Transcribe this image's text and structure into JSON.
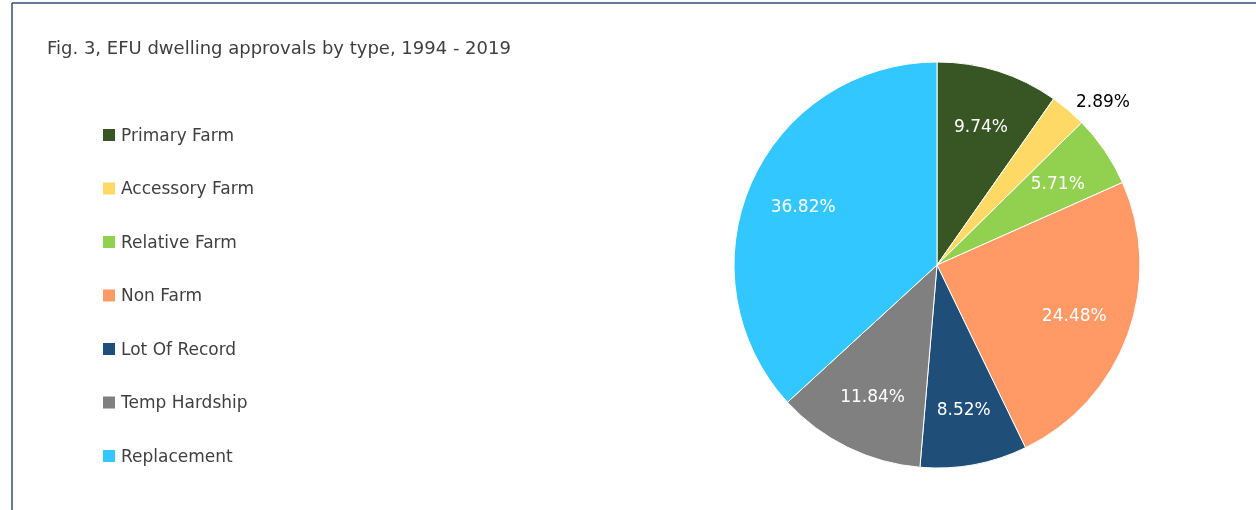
{
  "chart_data": {
    "type": "pie",
    "title": "Fig. 3, EFU dwelling approvals by type, 1994 - 2019",
    "categories": [
      "Primary Farm",
      "Accessory Farm",
      "Relative Farm",
      "Non Farm",
      "Lot Of Record",
      "Temp Hardship",
      "Replacement"
    ],
    "values": [
      9.74,
      2.89,
      5.71,
      24.48,
      8.52,
      11.84,
      36.82
    ],
    "colors": [
      "#375623",
      "#ffd966",
      "#92d050",
      "#ff9966",
      "#1f4e79",
      "#808080",
      "#33c7ff"
    ],
    "value_labels": [
      "9.74%",
      "2.89%",
      "5.71%",
      "24.48%",
      "8.52%",
      "11.84%",
      "36.82%"
    ],
    "legend": "left"
  }
}
